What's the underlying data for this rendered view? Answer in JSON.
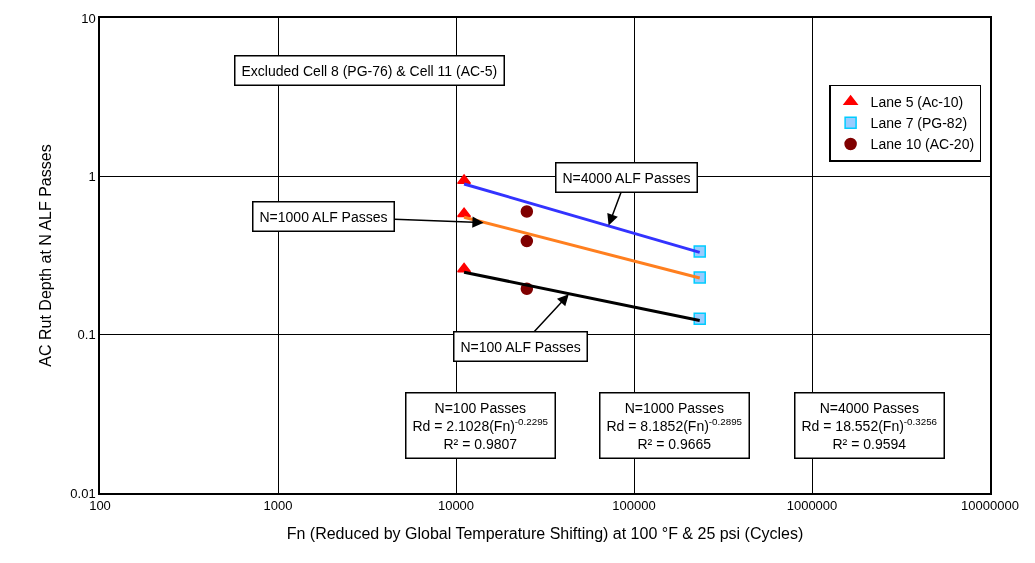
{
  "chart_data": {
    "type": "scatter",
    "xlabel": "Fn (Reduced by Global Temperature Shifting) at 100 °F & 25 psi (Cycles)",
    "ylabel": "AC Rut Depth at N ALF Passes",
    "series": [
      {
        "name": "Lane 5 (Ac-10)",
        "color": "#ff0000",
        "marker": "triangle",
        "x": [
          11100,
          11100,
          11100
        ],
        "values": [
          0.94,
          0.58,
          0.26
        ]
      },
      {
        "name": "Lane 7 (PG-82)",
        "color": "#99ccff",
        "marker": "square",
        "x": [
          234000,
          234000,
          234000
        ],
        "values": [
          0.335,
          0.23,
          0.126
        ]
      },
      {
        "name": "Lane 10 (AC-20)",
        "color": "#800000",
        "marker": "circle",
        "x": [
          25000,
          25000,
          25000
        ],
        "values": [
          0.6,
          0.39,
          0.195
        ]
      },
      {
        "type": "line",
        "color": "#3333ff",
        "marker": "none",
        "x": [
          11100,
          234000
        ],
        "values": [
          0.895,
          0.331
        ]
      },
      {
        "type": "line",
        "color": "#ff7f1f",
        "marker": "none",
        "x": [
          11100,
          234000
        ],
        "values": [
          0.552,
          0.228
        ]
      },
      {
        "type": "line",
        "color": "#000000",
        "marker": "none",
        "x": [
          11100,
          234000
        ],
        "values": [
          0.248,
          0.123
        ]
      }
    ],
    "annotations": [
      "Excluded Cell 8 (PG-76) & Cell 11 (AC-5)",
      {
        "text": "N=4000 ALF Passes",
        "x": 72000,
        "y": 0.49
      },
      {
        "text": "N=1000 ALF Passes",
        "x": 14300,
        "y": 0.51
      },
      {
        "text": "N=100 ALF Passes",
        "x": 43000,
        "y": 0.18
      },
      "N=100 Passes\nRd = 2.1028(Fn)$^{-0.2295}$\nR² = 0.9807",
      "N=1000 Passes\nRd = 8.1852(Fn)$^{-0.2895}$\nR² = 0.9665",
      "N=4000 Passes\nRd = 18.552(Fn)$^{-0.3256}$\nR² = 0.9594"
    ],
    "log": "xy",
    "grid": true,
    "legend": "top right",
    "line_style": "solid",
    "xlim": [
      100,
      10000000
    ],
    "xticks": [
      100,
      1000,
      10000,
      100000,
      1000000,
      10000000
    ],
    "ylim": [
      0.01,
      10
    ],
    "yticks": [
      0.01,
      0.1,
      1,
      10
    ]
  }
}
